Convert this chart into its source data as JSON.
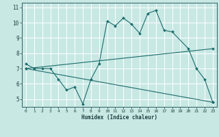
{
  "xlabel": "Humidex (Indice chaleur)",
  "bg_color": "#c8e8e4",
  "grid_color": "#ffffff",
  "line_color": "#1a6b6b",
  "x_min": -0.5,
  "x_max": 23.5,
  "y_min": 4.5,
  "y_max": 11.3,
  "yticks": [
    5,
    6,
    7,
    8,
    9,
    10,
    11
  ],
  "xticks": [
    0,
    1,
    2,
    3,
    4,
    5,
    6,
    7,
    8,
    9,
    10,
    11,
    12,
    13,
    14,
    15,
    16,
    17,
    18,
    19,
    20,
    21,
    22,
    23
  ],
  "series": [
    {
      "x": [
        0,
        1,
        2,
        3,
        4,
        5,
        6,
        7,
        8,
        9,
        10,
        11,
        12,
        13,
        14,
        15,
        16,
        17,
        18,
        20,
        21,
        22,
        23
      ],
      "y": [
        7.3,
        7.0,
        7.0,
        7.0,
        6.3,
        5.6,
        5.8,
        4.7,
        6.3,
        7.3,
        10.1,
        9.8,
        10.3,
        9.9,
        9.3,
        10.6,
        10.8,
        9.5,
        9.4,
        8.3,
        7.0,
        6.3,
        4.8
      ]
    },
    {
      "x": [
        0,
        23
      ],
      "y": [
        7.0,
        8.3
      ]
    },
    {
      "x": [
        0,
        23
      ],
      "y": [
        7.0,
        4.8
      ]
    }
  ]
}
